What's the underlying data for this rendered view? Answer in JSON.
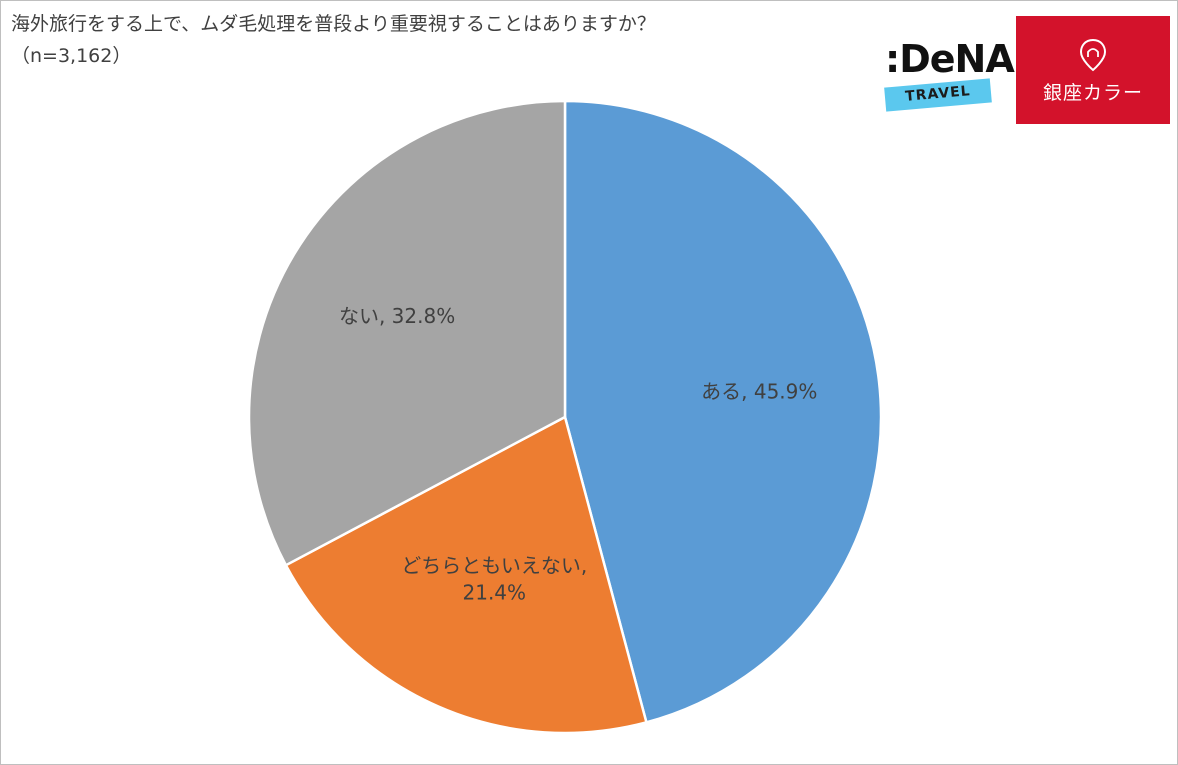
{
  "chart_data": {
    "type": "pie",
    "title": "海外旅行をする上で、ムダ毛処理を普段より重要視することはありますか？",
    "subtitle": "（n=3,162）",
    "categories": [
      "ある",
      "どちらともいえない",
      "ない"
    ],
    "values": [
      45.9,
      21.4,
      32.8
    ],
    "unit": "%",
    "labels": [
      {
        "lines": [
          "ある, 45.9%"
        ]
      },
      {
        "lines": [
          "どちらともいえない,",
          "21.4%"
        ]
      },
      {
        "lines": [
          "ない, 32.8%"
        ]
      }
    ],
    "colors": [
      "#5b9bd5",
      "#ed7d31",
      "#a5a5a5"
    ],
    "start_angle": "12 o'clock",
    "direction": "clockwise",
    "legend": "none"
  },
  "logos": {
    "dena": {
      "word": ":DeNA",
      "sub": "TRAVEL",
      "band_color": "#5bc8ee"
    },
    "ginza": {
      "text": "銀座カラー",
      "bg_color": "#d3122b",
      "icon": "pin-icon"
    }
  }
}
